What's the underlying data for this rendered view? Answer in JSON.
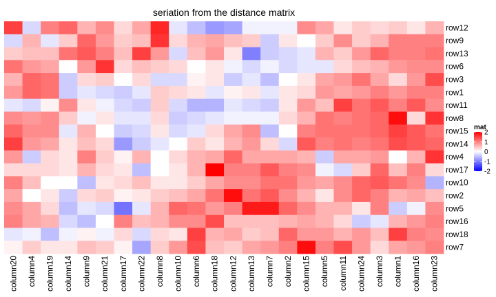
{
  "chart_data": {
    "type": "heatmap",
    "title": "seriation from the distance matrix",
    "rows": [
      "row12",
      "row9",
      "row13",
      "row6",
      "row3",
      "row1",
      "row11",
      "row8",
      "row15",
      "row14",
      "row4",
      "row17",
      "row10",
      "row2",
      "row5",
      "row16",
      "row18",
      "row7"
    ],
    "columns": [
      "column20",
      "column4",
      "column19",
      "column14",
      "column9",
      "column21",
      "column17",
      "column22",
      "column8",
      "column10",
      "column6",
      "column18",
      "column12",
      "column13",
      "column7",
      "column2",
      "column15",
      "column5",
      "column11",
      "column24",
      "column3",
      "column1",
      "column16",
      "column23"
    ],
    "values": [
      [
        1.5,
        -0.3,
        1.0,
        1.2,
        0.6,
        0.9,
        0.3,
        0.7,
        1.7,
        -0.2,
        -0.5,
        -0.8,
        -0.7,
        -0.1,
        -0.1,
        -0.1,
        0.9,
        0.7,
        0.2,
        0.4,
        0.3,
        0.4,
        0.2,
        0.6
      ],
      [
        -0.3,
        0.6,
        -0.2,
        0.4,
        1.2,
        0.8,
        0.4,
        0.5,
        1.6,
        0.3,
        0.6,
        0.7,
        0.5,
        0.4,
        -0.4,
        0.2,
        0.0,
        0.4,
        0.9,
        0.4,
        0.6,
        1.0,
        1.0,
        1.0
      ],
      [
        0.4,
        0.5,
        0.5,
        1.1,
        1.3,
        1.0,
        0.5,
        1.5,
        0.8,
        -0.3,
        0.5,
        0.8,
        0.2,
        -1.0,
        -0.4,
        -0.3,
        -0.2,
        0.6,
        0.4,
        0.8,
        1.2,
        1.0,
        1.0,
        1.1
      ],
      [
        1.1,
        0.8,
        0.7,
        0.0,
        0.8,
        1.6,
        0.3,
        0.5,
        0.4,
        0.3,
        0.0,
        0.2,
        -0.1,
        -0.3,
        -0.1,
        -0.3,
        -0.2,
        -0.2,
        0.3,
        0.5,
        0.6,
        0.8,
        0.9,
        0.9
      ],
      [
        0.6,
        1.2,
        1.1,
        -0.4,
        0.3,
        0.4,
        0.0,
        0.3,
        -0.3,
        -0.3,
        0.1,
        0.2,
        -0.4,
        -0.2,
        -0.5,
        0.0,
        0.2,
        0.7,
        0.8,
        1.1,
        0.7,
        0.3,
        0.8,
        1.4
      ],
      [
        0.8,
        1.2,
        1.1,
        -0.4,
        -0.2,
        -0.3,
        -0.4,
        -0.2,
        0.4,
        0.3,
        0.2,
        -0.2,
        0.1,
        0.2,
        -0.2,
        0.2,
        0.3,
        0.8,
        0.7,
        0.8,
        1.0,
        0.8,
        1.0,
        1.0
      ],
      [
        -0.2,
        -0.3,
        0.1,
        0.9,
        0.2,
        -0.1,
        -0.3,
        -0.4,
        0.4,
        -0.3,
        -0.6,
        -0.6,
        -0.2,
        -0.3,
        -0.4,
        0.2,
        0.8,
        0.5,
        1.5,
        1.1,
        1.3,
        1.0,
        1.3,
        0.9
      ],
      [
        0.9,
        0.8,
        0.9,
        0.4,
        -0.1,
        0.2,
        -0.2,
        -0.2,
        0.3,
        -0.4,
        -0.3,
        -0.2,
        -0.1,
        -0.1,
        -0.1,
        0.3,
        0.6,
        1.1,
        1.0,
        1.1,
        1.2,
        1.9,
        0.3,
        1.6
      ],
      [
        1.2,
        0.9,
        0.9,
        -0.2,
        0.6,
        0.0,
        -0.4,
        -0.3,
        0.2,
        -0.3,
        -0.2,
        0.3,
        0.7,
        0.9,
        -0.5,
        0.0,
        1.0,
        1.1,
        1.1,
        1.1,
        1.2,
        1.5,
        1.3,
        1.1
      ],
      [
        1.5,
        0.8,
        0.7,
        0.2,
        0.5,
        0.3,
        -0.8,
        -0.4,
        -0.2,
        0.0,
        0.4,
        0.2,
        0.6,
        0.8,
        0.3,
        -0.3,
        1.3,
        1.0,
        1.1,
        1.0,
        1.1,
        1.4,
        1.3,
        1.2
      ],
      [
        0.8,
        -0.4,
        0.3,
        0.2,
        1.0,
        0.4,
        0.1,
        0.6,
        0.0,
        0.3,
        0.6,
        0.7,
        1.2,
        0.7,
        0.7,
        0.7,
        0.6,
        -0.4,
        0.7,
        0.7,
        0.8,
        0.0,
        0.6,
        1.6
      ],
      [
        0.3,
        0.3,
        0.3,
        0.2,
        0.6,
        0.3,
        0.2,
        -0.5,
        0.0,
        0.2,
        0.6,
        2.0,
        1.0,
        1.0,
        1.3,
        1.0,
        0.9,
        -0.1,
        -0.3,
        0.4,
        1.2,
        0.5,
        1.0,
        0.3
      ],
      [
        1.0,
        0.5,
        0.0,
        0.0,
        -0.5,
        0.2,
        0.3,
        0.5,
        0.2,
        0.2,
        0.4,
        0.7,
        0.9,
        0.9,
        1.1,
        1.1,
        0.8,
        0.7,
        0.9,
        1.2,
        1.3,
        1.1,
        0.9,
        -0.6
      ],
      [
        0.7,
        0.0,
        0.2,
        -0.4,
        0.3,
        0.4,
        0.1,
        0.2,
        0.4,
        0.5,
        0.7,
        1.1,
        1.9,
        1.1,
        1.3,
        0.9,
        0.6,
        0.2,
        0.9,
        1.2,
        1.0,
        0.6,
        0.7,
        0.5
      ],
      [
        0.9,
        0.7,
        0.3,
        -0.5,
        -0.2,
        -0.3,
        -1.1,
        -0.2,
        0.6,
        1.2,
        1.1,
        0.8,
        1.0,
        1.8,
        1.8,
        1.2,
        0.9,
        0.6,
        0.6,
        0.2,
        1.0,
        -0.4,
        -0.1,
        0.9
      ],
      [
        1.0,
        0.7,
        0.6,
        -0.3,
        -0.5,
        0.0,
        1.0,
        0.5,
        0.6,
        0.9,
        0.9,
        1.4,
        0.5,
        0.5,
        0.5,
        0.6,
        0.7,
        0.6,
        0.3,
        -0.4,
        -0.2,
        0.6,
        0.8,
        1.0
      ],
      [
        -0.2,
        -0.1,
        -0.5,
        -0.1,
        0.1,
        -0.1,
        0.3,
        -0.3,
        0.3,
        0.2,
        1.5,
        0.6,
        0.7,
        0.4,
        0.5,
        1.2,
        0.8,
        0.8,
        0.6,
        0.8,
        0.5,
        1.5,
        1.0,
        0.9
      ],
      [
        0.1,
        0.4,
        0.2,
        0.2,
        0.5,
        0.4,
        0.1,
        -0.7,
        0.4,
        0.8,
        1.4,
        0.5,
        0.4,
        0.7,
        0.8,
        1.0,
        1.9,
        1.0,
        1.4,
        0.8,
        0.3,
        0.7,
        0.8,
        1.0
      ]
    ],
    "legend": {
      "title": "mat",
      "ticks": [
        2,
        1,
        0,
        -1,
        -2
      ],
      "placement": "right"
    },
    "scale": {
      "low": -2,
      "mid": 0,
      "high": 2,
      "low_color": "#0000ff",
      "mid_color": "#ffffff",
      "high_color": "#ff0000"
    }
  }
}
